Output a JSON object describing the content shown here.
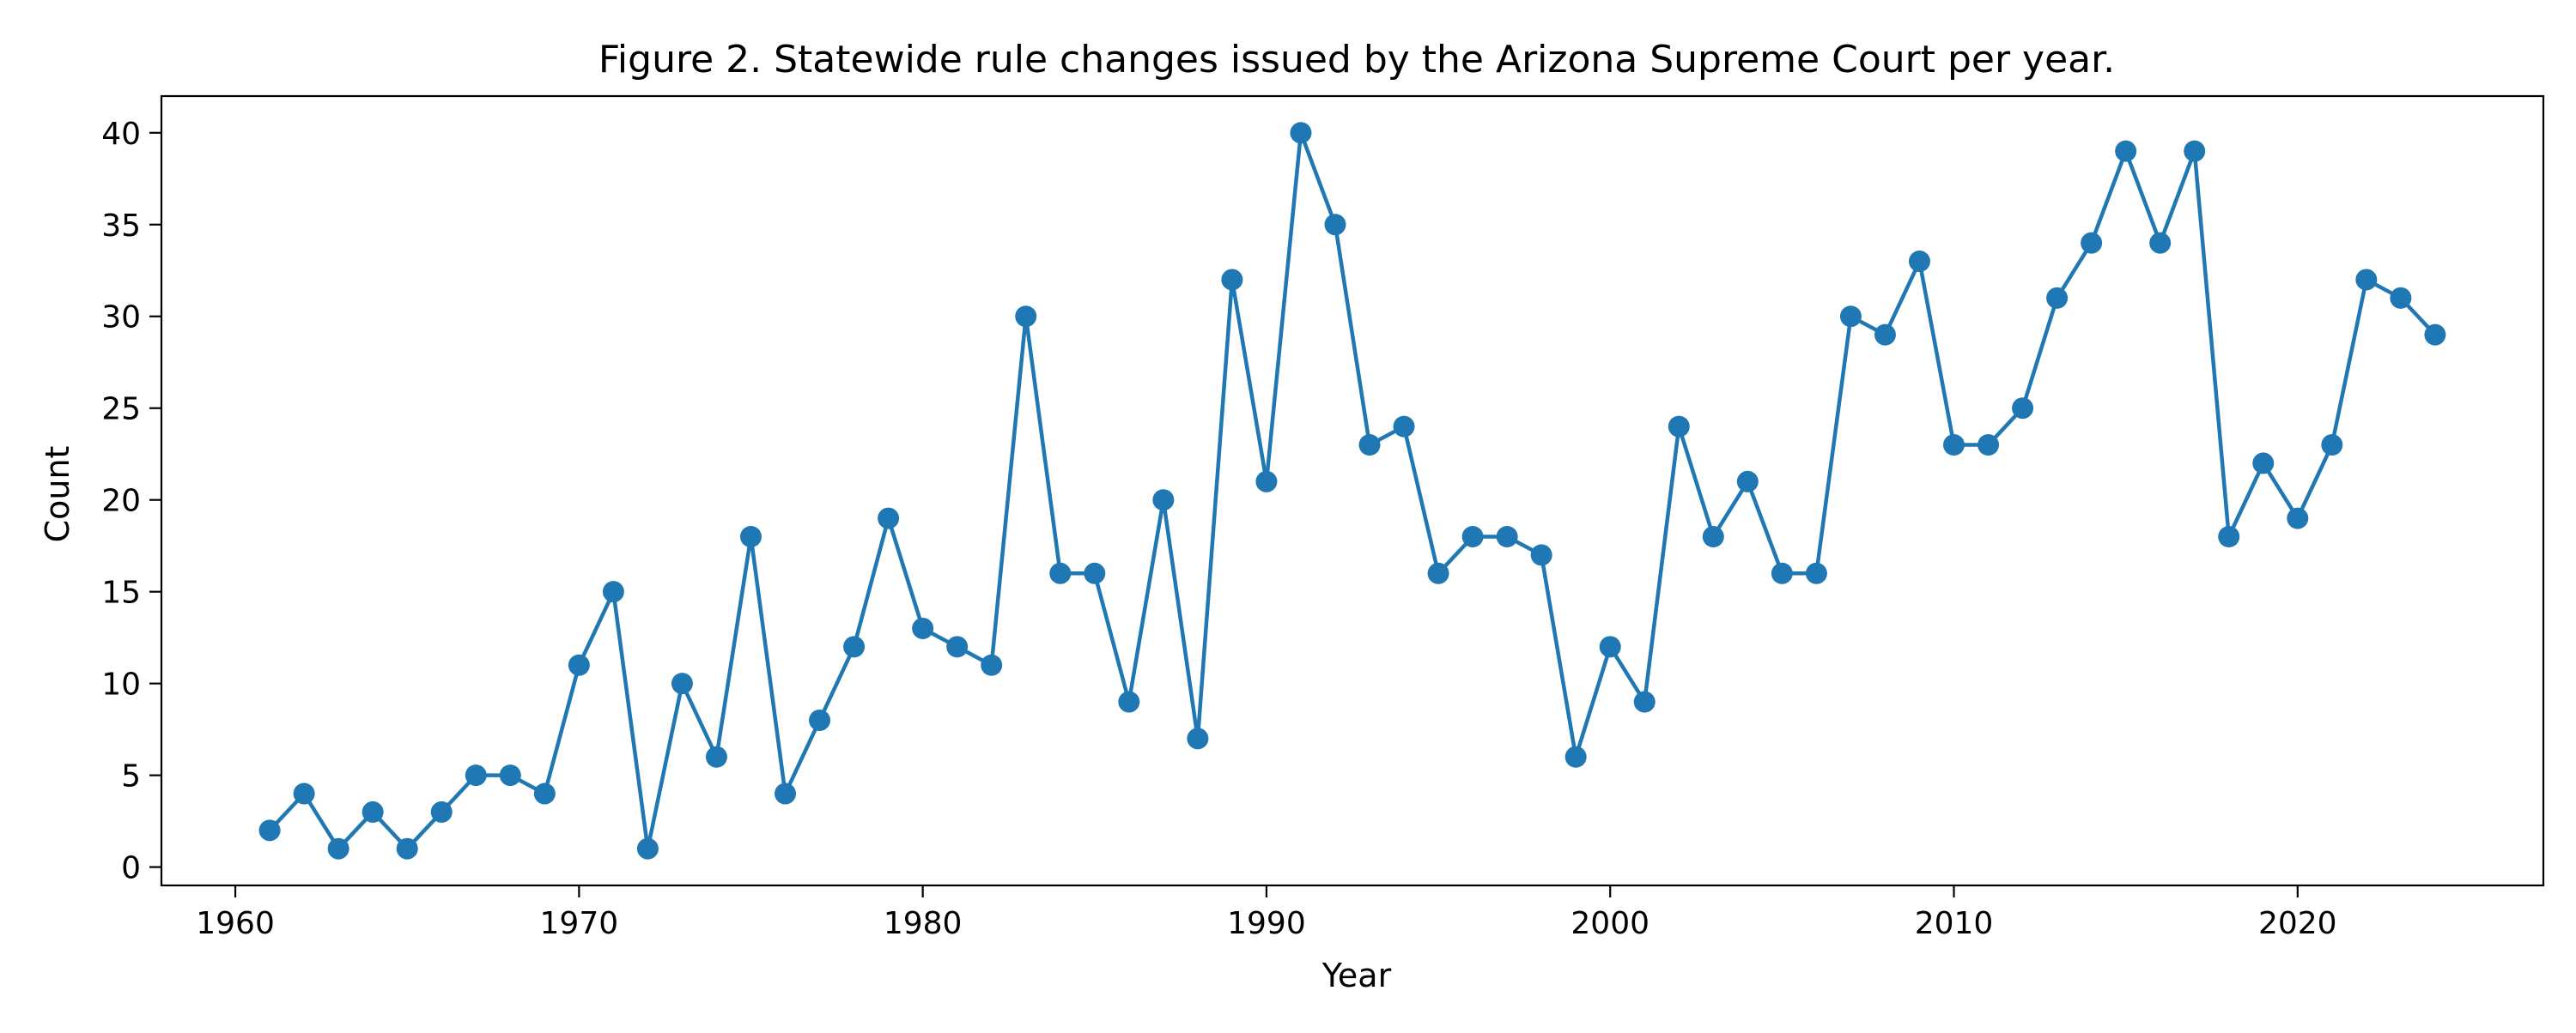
{
  "chart_data": {
    "type": "line",
    "title": "Figure 2. Statewide rule changes issued by the Arizona Supreme Court per year.",
    "xlabel": "Year",
    "ylabel": "Count",
    "xlim": [
      1957.85,
      2027.15
    ],
    "ylim": [
      -1.0,
      42.0
    ],
    "x_ticks": [
      1960,
      1970,
      1980,
      1990,
      2000,
      2010,
      2020
    ],
    "y_ticks": [
      0,
      5,
      10,
      15,
      20,
      25,
      30,
      35,
      40
    ],
    "grid": false,
    "legend": "none",
    "series": [
      {
        "color": "#1f77b4",
        "marker": "circle",
        "x": [
          1961,
          1962,
          1963,
          1964,
          1965,
          1966,
          1967,
          1968,
          1969,
          1970,
          1971,
          1972,
          1973,
          1974,
          1975,
          1976,
          1977,
          1978,
          1979,
          1980,
          1981,
          1982,
          1983,
          1984,
          1985,
          1986,
          1987,
          1988,
          1989,
          1990,
          1991,
          1992,
          1993,
          1994,
          1995,
          1996,
          1997,
          1998,
          1999,
          2000,
          2001,
          2002,
          2003,
          2004,
          2005,
          2006,
          2007,
          2008,
          2009,
          2010,
          2011,
          2012,
          2013,
          2014,
          2015,
          2016,
          2017,
          2018,
          2019,
          2020,
          2021,
          2022,
          2023,
          2024
        ],
        "y": [
          2,
          4,
          1,
          3,
          1,
          3,
          5,
          5,
          4,
          11,
          15,
          1,
          10,
          6,
          18,
          4,
          8,
          12,
          19,
          13,
          12,
          11,
          30,
          16,
          16,
          9,
          20,
          7,
          32,
          21,
          40,
          35,
          23,
          24,
          16,
          18,
          18,
          17,
          6,
          12,
          9,
          24,
          18,
          21,
          16,
          16,
          30,
          29,
          33,
          23,
          23,
          25,
          31,
          34,
          39,
          34,
          39,
          18,
          22,
          19,
          23,
          32,
          31,
          29
        ]
      }
    ]
  }
}
